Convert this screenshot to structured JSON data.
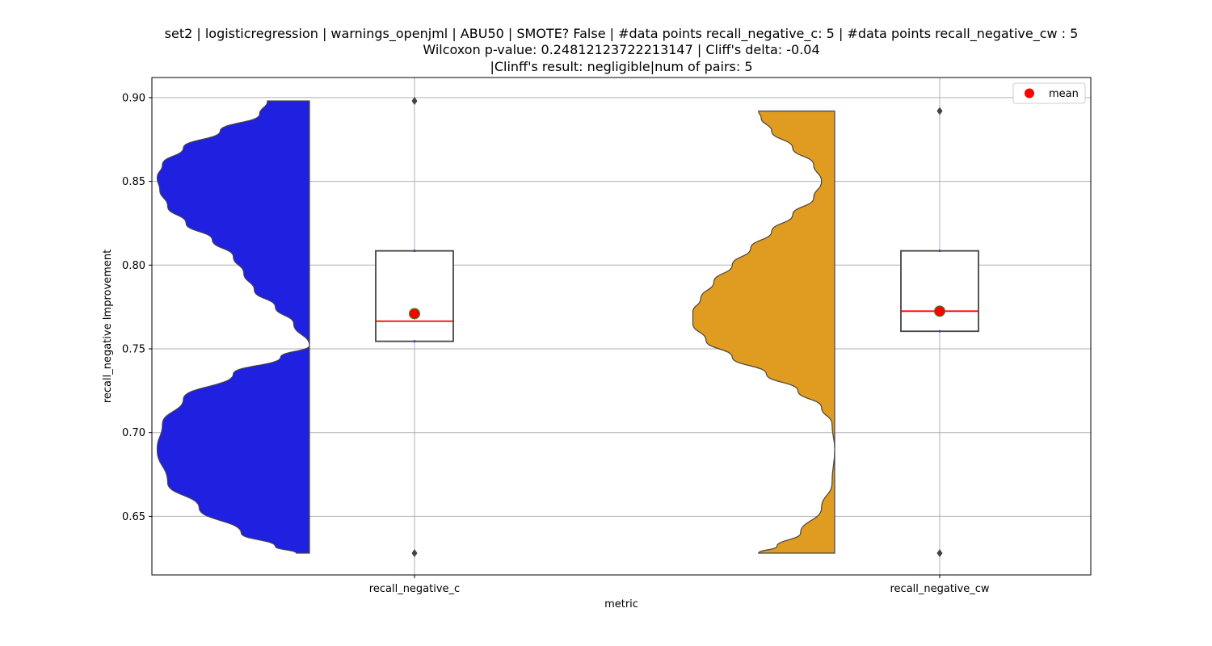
{
  "chart_data": {
    "type": "violin",
    "title_lines": [
      "set2 | logisticregression | warnings_openjml | ABU50 | SMOTE? False | #data points recall_negative_c: 5 | #data points recall_negative_cw : 5",
      "Wilcoxon p-value: 0.24812123722213147 | Cliff's delta: -0.04",
      "|Clinff's result: negligible|num of pairs: 5"
    ],
    "xlabel": "metric",
    "ylabel": "recall_negative Improvement",
    "ylim": [
      0.615,
      0.912
    ],
    "yticks": [
      0.65,
      0.7,
      0.75,
      0.8,
      0.85,
      0.9
    ],
    "ytick_labels": [
      "0.65",
      "0.70",
      "0.75",
      "0.80",
      "0.85",
      "0.90"
    ],
    "grid": true,
    "legend": {
      "label": "mean",
      "placement": "top-right",
      "color": "#ff0000"
    },
    "categories": [
      "recall_negative_c",
      "recall_negative_cw"
    ],
    "series": [
      {
        "category": "recall_negative_c",
        "color": "#2020e0",
        "violin_range": [
          0.628,
          0.898
        ],
        "density": [
          [
            0.628,
            0.25
          ],
          [
            0.632,
            0.65
          ],
          [
            0.64,
            1.3
          ],
          [
            0.655,
            2.1
          ],
          [
            0.67,
            2.7
          ],
          [
            0.69,
            2.9
          ],
          [
            0.705,
            2.8
          ],
          [
            0.72,
            2.4
          ],
          [
            0.735,
            1.45
          ],
          [
            0.745,
            0.55
          ],
          [
            0.752,
            0.0
          ],
          [
            0.765,
            0.3
          ],
          [
            0.775,
            0.65
          ],
          [
            0.785,
            1.05
          ],
          [
            0.795,
            1.25
          ],
          [
            0.805,
            1.45
          ],
          [
            0.815,
            1.85
          ],
          [
            0.825,
            2.35
          ],
          [
            0.835,
            2.7
          ],
          [
            0.845,
            2.85
          ],
          [
            0.852,
            2.9
          ],
          [
            0.86,
            2.8
          ],
          [
            0.87,
            2.4
          ],
          [
            0.88,
            1.7
          ],
          [
            0.89,
            0.95
          ],
          [
            0.898,
            0.8
          ]
        ],
        "box": {
          "q1": 0.7545,
          "median": 0.7665,
          "q3": 0.8085,
          "whisker_low": 0.7545,
          "whisker_high": 0.8085
        },
        "mean": 0.771,
        "outliers": [
          0.898,
          0.628
        ]
      },
      {
        "category": "recall_negative_cw",
        "color": "#e09c20",
        "violin_range": [
          0.628,
          0.892
        ],
        "density": [
          [
            0.628,
            1.45
          ],
          [
            0.632,
            1.1
          ],
          [
            0.64,
            0.65
          ],
          [
            0.655,
            0.25
          ],
          [
            0.67,
            0.05
          ],
          [
            0.69,
            0.0
          ],
          [
            0.705,
            0.05
          ],
          [
            0.715,
            0.25
          ],
          [
            0.725,
            0.7
          ],
          [
            0.735,
            1.3
          ],
          [
            0.745,
            1.95
          ],
          [
            0.755,
            2.45
          ],
          [
            0.765,
            2.7
          ],
          [
            0.772,
            2.7
          ],
          [
            0.78,
            2.55
          ],
          [
            0.79,
            2.3
          ],
          [
            0.8,
            1.95
          ],
          [
            0.81,
            1.6
          ],
          [
            0.82,
            1.2
          ],
          [
            0.83,
            0.8
          ],
          [
            0.84,
            0.4
          ],
          [
            0.85,
            0.25
          ],
          [
            0.86,
            0.4
          ],
          [
            0.87,
            0.8
          ],
          [
            0.88,
            1.2
          ],
          [
            0.888,
            1.4
          ],
          [
            0.892,
            1.45
          ]
        ],
        "box": {
          "q1": 0.7605,
          "median": 0.7725,
          "q3": 0.8085,
          "whisker_low": 0.7605,
          "whisker_high": 0.8085
        },
        "mean": 0.7725,
        "outliers": [
          0.892,
          0.628
        ]
      }
    ]
  }
}
